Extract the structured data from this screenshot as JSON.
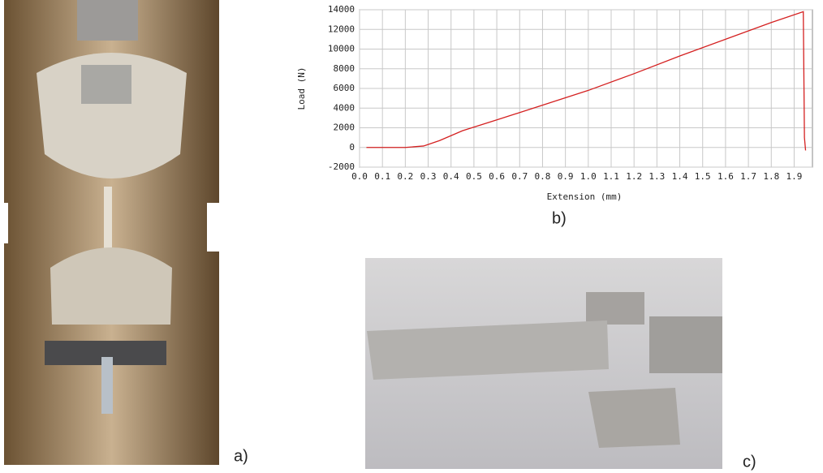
{
  "chart_data": {
    "type": "line",
    "x_label": "Extension (mm)",
    "y_label": "Load (N)",
    "x": [
      0.03,
      0.2,
      0.28,
      0.35,
      0.45,
      0.6,
      0.8,
      1.0,
      1.2,
      1.4,
      1.6,
      1.8,
      1.94,
      1.945,
      1.95
    ],
    "values": [
      0,
      0,
      150,
      700,
      1700,
      2800,
      4300,
      5800,
      7500,
      9300,
      11000,
      12700,
      13800,
      1000,
      -300
    ],
    "color": "#d42020",
    "xlim": [
      0,
      1.98
    ],
    "xticks": [
      {
        "value": 0,
        "label": "0.0"
      },
      0.1,
      0.2,
      0.3,
      0.4,
      0.5,
      0.6,
      0.7,
      0.8,
      0.9,
      {
        "value": 1,
        "label": "1.0"
      },
      1.1,
      1.2,
      1.3,
      1.4,
      1.5,
      1.6,
      1.7,
      1.8,
      1.9
    ],
    "ylim": [
      -2000,
      14000
    ],
    "yticks": [
      -2000,
      0,
      2000,
      4000,
      6000,
      8000,
      10000,
      12000,
      14000
    ],
    "grid": true
  },
  "panel_labels": [
    "a)",
    "b)",
    "c)"
  ]
}
